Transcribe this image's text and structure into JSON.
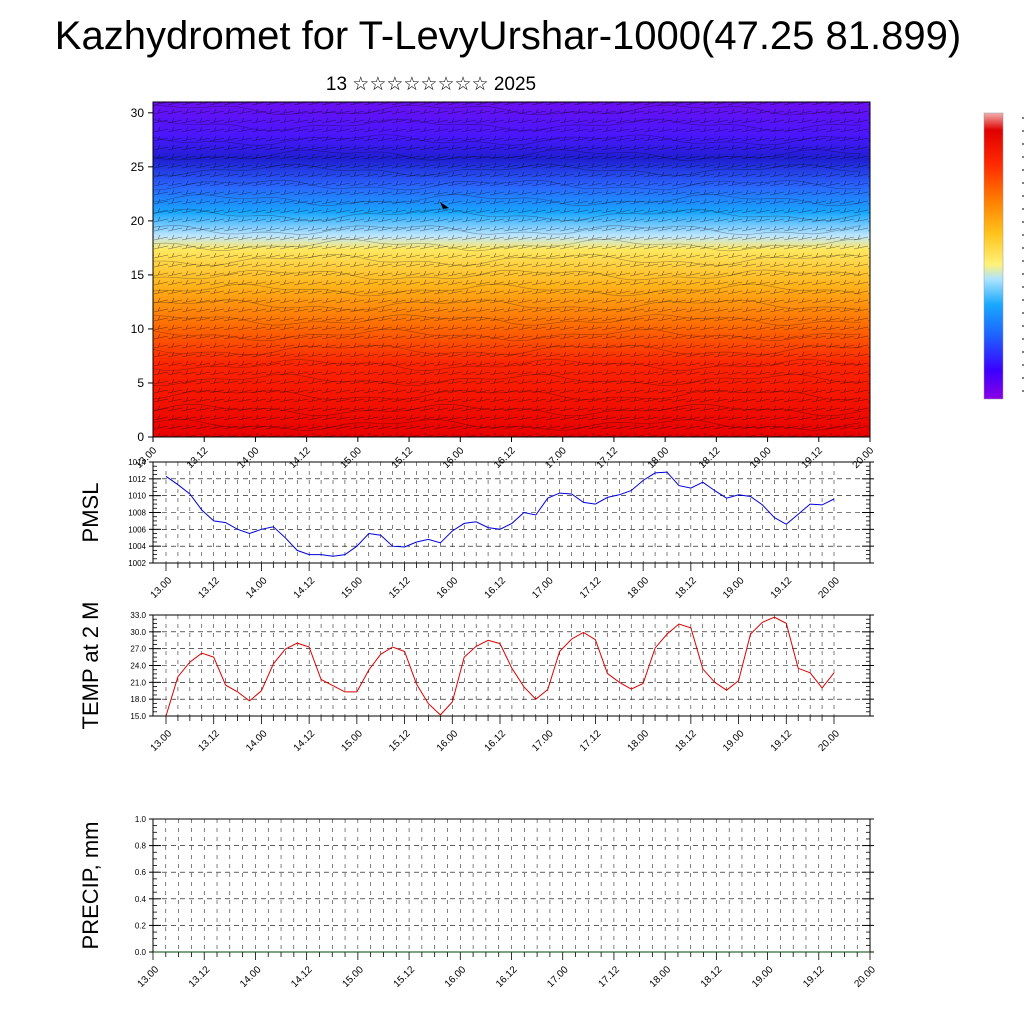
{
  "title": "Kazhydromet for T-LevyUrshar-1000(47.25 81.899)",
  "subtitle": "13 ☆☆☆☆☆☆☆☆ 2025",
  "x_tick_labels": [
    "13.00",
    "13.12",
    "14.00",
    "14.12",
    "15.00",
    "15.12",
    "16.00",
    "16.12",
    "17.00",
    "17.12",
    "18.00",
    "18.12",
    "19.00",
    "19.12",
    "20.00"
  ],
  "colors": {
    "pmsl_line": "#0000dd",
    "temp_line": "#dd0000",
    "precip_line": "#004400",
    "colorbar": [
      "#8a00e6",
      "#3b00ff",
      "#1e60ff",
      "#18a8ff",
      "#aee4ff",
      "#fff27a",
      "#ffc21a",
      "#ff7a00",
      "#ff2a00",
      "#e00000",
      "#f2b0b0"
    ]
  },
  "chart_data": [
    {
      "type": "heatmap",
      "title": "",
      "xlabel": "",
      "ylabel": "",
      "ylim": [
        0,
        31
      ],
      "y_ticks": [
        0,
        5,
        10,
        15,
        20,
        25,
        30
      ],
      "description": "Vertical cross-section: color-filled field with wind barbs and contour lines; warm (red) near surface, cold (purple) aloft",
      "colorbar": "right side, vertical, no legible labels"
    },
    {
      "type": "line",
      "ylabel": "PMSL",
      "ylim": [
        1002,
        1014
      ],
      "y_ticks": [
        "1002",
        "1004",
        "1006",
        "1008",
        "1010",
        "1012",
        "1014"
      ],
      "series": [
        {
          "values": [
            1012.3,
            1011.3,
            1010.2,
            1008.3,
            1007.0,
            1006.8,
            1006.0,
            1005.5,
            1006.0,
            1006.3,
            1005.0,
            1003.5,
            1003.0,
            1003.0,
            1002.8,
            1003.0,
            1004.0,
            1005.5,
            1005.3,
            1004.0,
            1003.9,
            1004.5,
            1004.8,
            1004.4,
            1005.8,
            1006.7,
            1006.9,
            1006.2,
            1006.0,
            1006.7,
            1008.0,
            1007.7,
            1009.7,
            1010.3,
            1010.2,
            1009.2,
            1009.0,
            1009.8,
            1010.1,
            1010.6,
            1011.8,
            1012.7,
            1012.8,
            1011.2,
            1010.9,
            1011.6,
            1010.6,
            1009.7,
            1010.1,
            1009.9,
            1008.9,
            1007.4,
            1006.6,
            1007.8,
            1009.0,
            1008.9,
            1009.6
          ]
        }
      ]
    },
    {
      "type": "line",
      "ylabel": "TEMP at 2 M",
      "ylim": [
        15.0,
        33.0
      ],
      "y_ticks": [
        "15.0",
        "18.0",
        "21.0",
        "24.0",
        "27.0",
        "30.0",
        "33.0"
      ],
      "series": [
        {
          "values": [
            15.0,
            22.0,
            24.6,
            26.2,
            25.5,
            20.5,
            19.3,
            17.7,
            19.5,
            24.3,
            26.9,
            28.0,
            27.3,
            21.5,
            20.4,
            19.3,
            19.3,
            23.2,
            26.0,
            27.3,
            26.5,
            20.7,
            17.2,
            15.2,
            17.5,
            25.5,
            27.4,
            28.5,
            27.9,
            23.5,
            20.2,
            18.0,
            19.7,
            26.5,
            28.7,
            29.9,
            28.6,
            22.6,
            21.0,
            19.8,
            20.8,
            27.1,
            29.6,
            31.4,
            30.7,
            23.4,
            21.0,
            19.6,
            21.3,
            29.6,
            31.7,
            32.6,
            31.5,
            23.5,
            22.7,
            20.0,
            22.7
          ]
        }
      ]
    },
    {
      "type": "line",
      "ylabel": "PRECIP, mm",
      "ylim": [
        0.0,
        1.0
      ],
      "y_ticks": [
        "0.0",
        "0.2",
        "0.4",
        "0.6",
        "0.8",
        "1.0"
      ],
      "series": [
        {
          "values": [
            0,
            0,
            0,
            0,
            0,
            0,
            0,
            0,
            0,
            0,
            0,
            0,
            0,
            0,
            0,
            0,
            0,
            0,
            0,
            0,
            0,
            0,
            0,
            0,
            0,
            0,
            0,
            0,
            0,
            0,
            0,
            0,
            0,
            0,
            0,
            0,
            0,
            0,
            0,
            0,
            0,
            0,
            0,
            0,
            0,
            0,
            0,
            0,
            0,
            0,
            0,
            0,
            0,
            0,
            0,
            0,
            0
          ]
        }
      ]
    }
  ]
}
